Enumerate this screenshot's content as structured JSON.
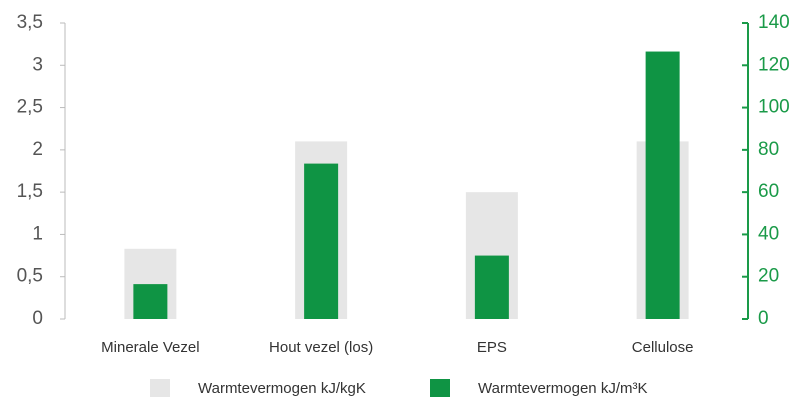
{
  "chart_data": {
    "type": "bar",
    "categories": [
      "Minerale Vezel",
      "Hout vezel (los)",
      "EPS",
      "Cellulose"
    ],
    "series": [
      {
        "name": "Warmtevermogen kJ/kgK",
        "color": "#e6e6e6",
        "values": [
          0.83,
          2.1,
          1.5,
          2.1
        ]
      },
      {
        "name": "Warmtevermogen kJ/m³K",
        "color": "#0f9444",
        "axis": "y2",
        "values": [
          16.5,
          73.5,
          30,
          126.5
        ]
      }
    ],
    "ylim": [
      0,
      3.5
    ],
    "yticks": [
      0,
      {
        "value": 0.5,
        "label": "0,5"
      },
      1,
      {
        "value": 1.5,
        "label": "1,5"
      },
      2,
      {
        "value": 2.5,
        "label": "2,5"
      },
      3,
      {
        "value": 3.5,
        "label": "3,5"
      }
    ],
    "y2lim": [
      0,
      140
    ],
    "y2ticks": [
      0,
      20,
      40,
      60,
      80,
      100,
      120,
      140
    ],
    "y2color": "#1a9a48",
    "legend": "bottom"
  }
}
